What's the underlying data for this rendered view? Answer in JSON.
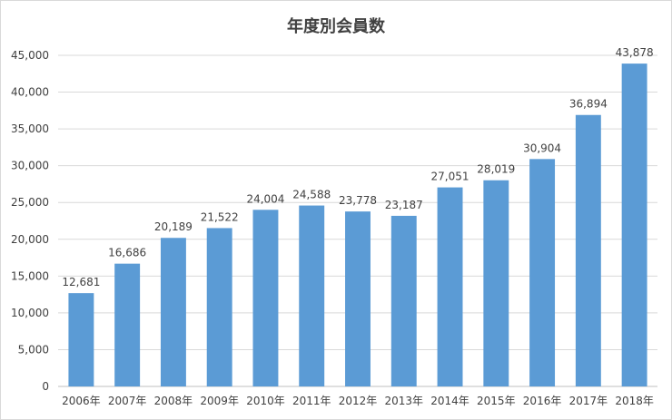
{
  "chart_data": {
    "type": "bar",
    "title": "年度別会員数",
    "xlabel": "",
    "ylabel": "",
    "categories": [
      "2006年",
      "2007年",
      "2008年",
      "2009年",
      "2010年",
      "2011年",
      "2012年",
      "2013年",
      "2014年",
      "2015年",
      "2016年",
      "2017年",
      "2018年"
    ],
    "values": [
      12681,
      16686,
      20189,
      21522,
      24004,
      24588,
      23778,
      23187,
      27051,
      28019,
      30904,
      36894,
      43878
    ],
    "data_labels": [
      "12,681",
      "16,686",
      "20,189",
      "21,522",
      "24,004",
      "24,588",
      "23,778",
      "23,187",
      "27,051",
      "28,019",
      "30,904",
      "36,894",
      "43,878"
    ],
    "y_ticks": [
      0,
      5000,
      10000,
      15000,
      20000,
      25000,
      30000,
      35000,
      40000,
      45000
    ],
    "y_tick_labels": [
      "0",
      "5,000",
      "10,000",
      "15,000",
      "20,000",
      "25,000",
      "30,000",
      "35,000",
      "40,000",
      "45,000"
    ],
    "ylim": [
      0,
      45000
    ],
    "grid": true,
    "legend": "none",
    "bar_color": "#5b9bd5",
    "grid_color": "#d9d9d9"
  }
}
